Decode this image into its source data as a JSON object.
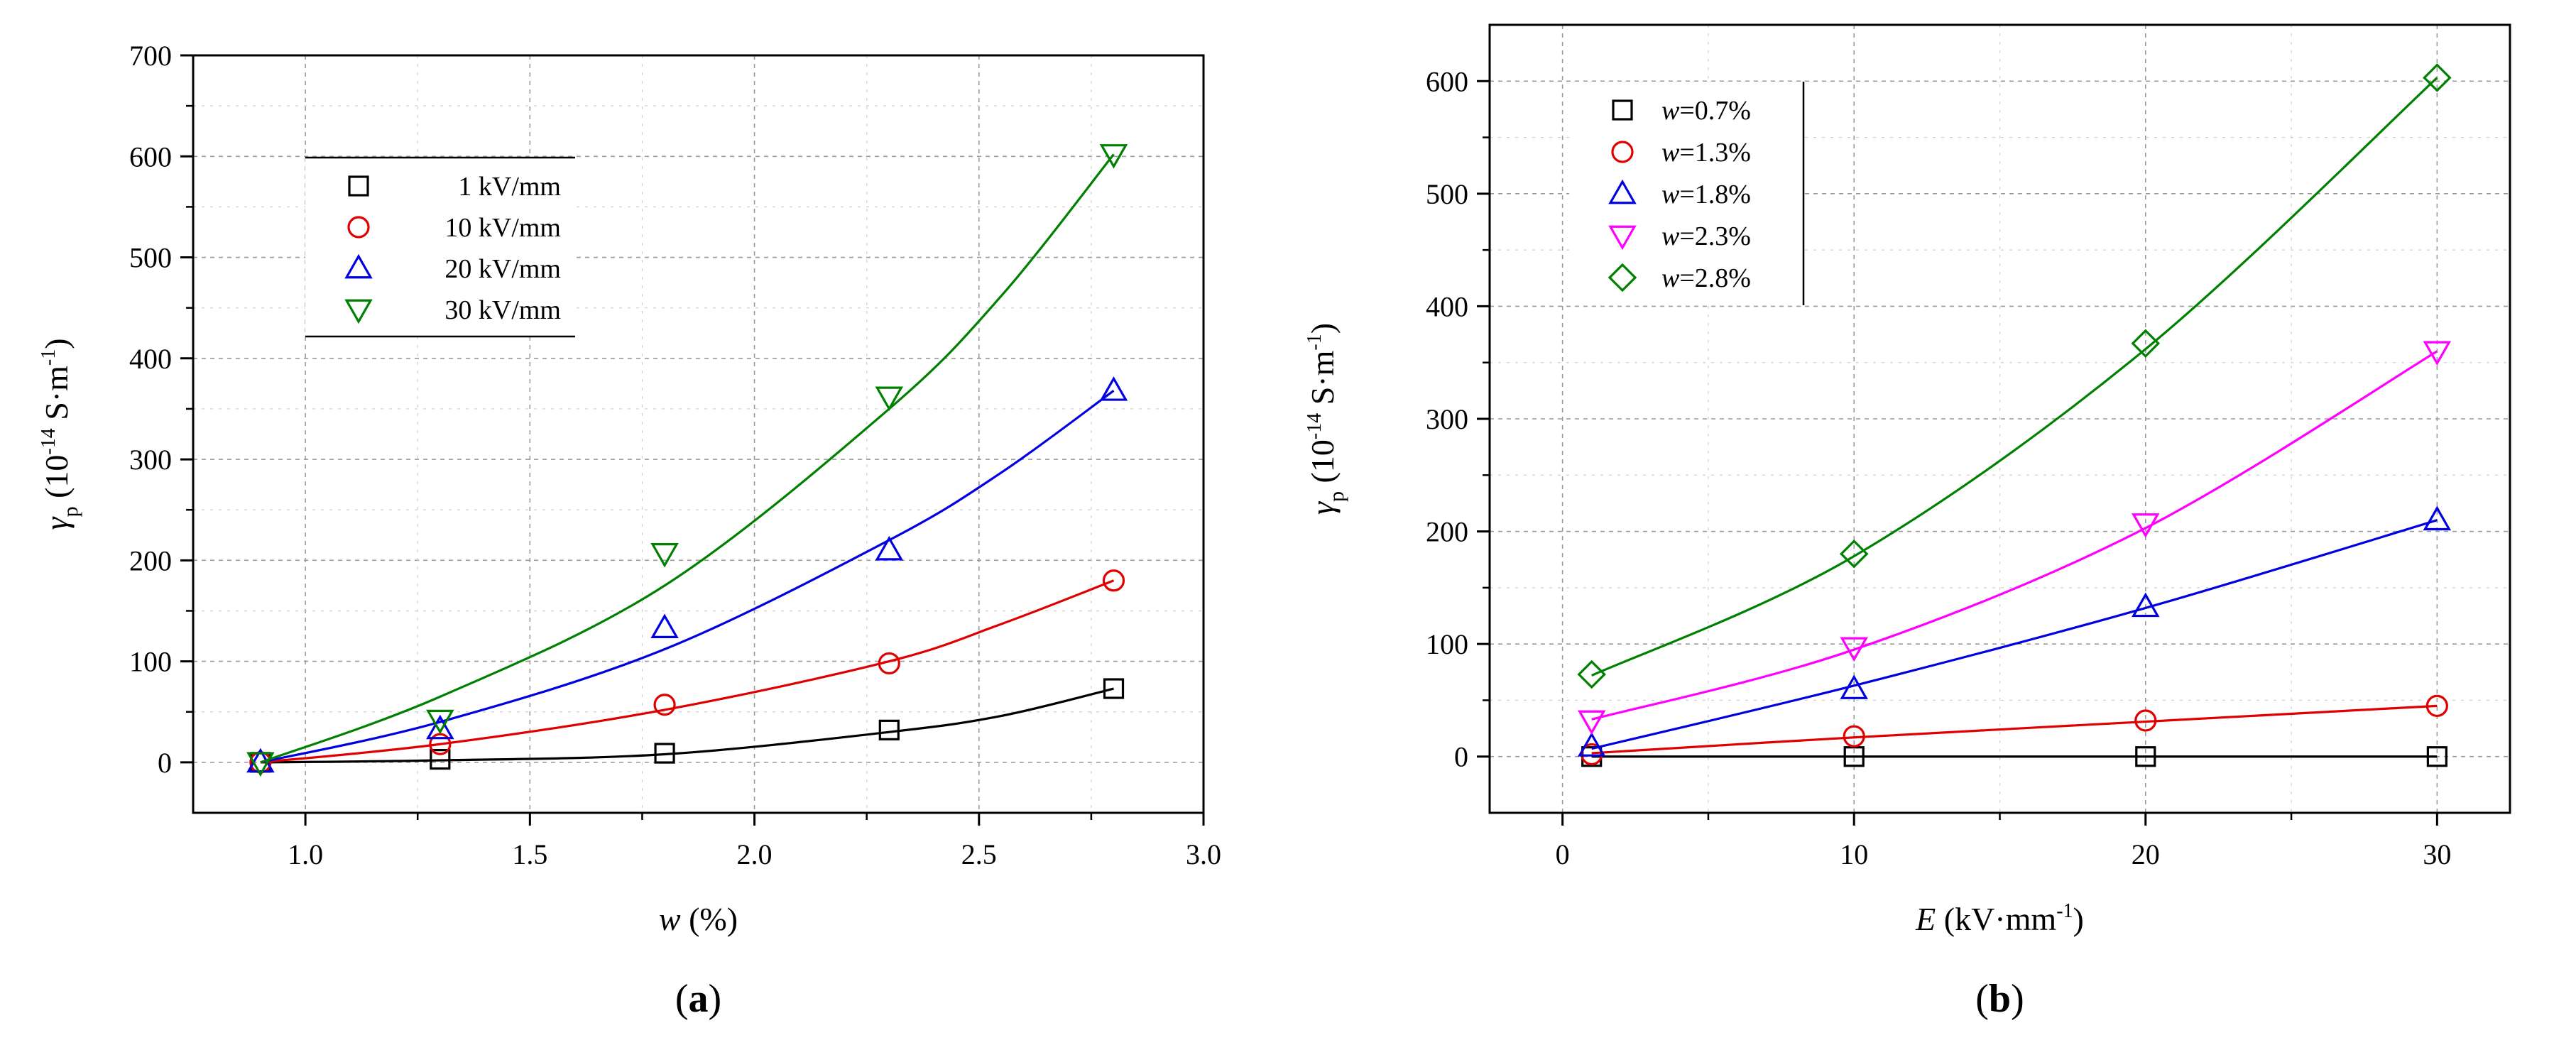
{
  "chart_data": [
    {
      "type": "scatter",
      "panel_label": {
        "pre": "(",
        "bold": "a",
        "post": ")"
      },
      "xlabel": {
        "var": "w",
        "unit": " (%)"
      },
      "ylabel": {
        "var": "γ",
        "sub": "p",
        "unit_pre": "(10",
        "sup": "-14",
        "unit_mid": " S·m",
        "sup2": "-1",
        "unit_post": ")"
      },
      "xlim": [
        0.75,
        3.0
      ],
      "ylim": [
        -50,
        700
      ],
      "xticks": [
        1.0,
        1.5,
        2.0,
        2.5,
        3.0
      ],
      "xtick_labels": [
        "1.0",
        "1.5",
        "2.0",
        "2.5",
        "3.0"
      ],
      "yticks": [
        0,
        100,
        200,
        300,
        400,
        500,
        600,
        700
      ],
      "ytick_labels": [
        "0",
        "100",
        "200",
        "300",
        "400",
        "500",
        "600",
        "700"
      ],
      "grid": true,
      "legend_position": "top-left",
      "legend_border": "tb",
      "series": [
        {
          "name": "1 kV/mm",
          "color": "#000000",
          "marker": "square",
          "x": [
            0.9,
            1.3,
            1.8,
            2.3,
            2.8
          ],
          "y": [
            0,
            3,
            9,
            32,
            73
          ],
          "fit": [
            [
              0.9,
              0
            ],
            [
              1.3,
              2
            ],
            [
              1.8,
              8
            ],
            [
              2.3,
              30
            ],
            [
              2.55,
              46
            ],
            [
              2.8,
              73
            ]
          ]
        },
        {
          "name": "10 kV/mm",
          "color": "#e00000",
          "marker": "circle",
          "x": [
            0.9,
            1.3,
            1.8,
            2.3,
            2.8
          ],
          "y": [
            0,
            18,
            57,
            98,
            180
          ],
          "fit": [
            [
              0.9,
              0
            ],
            [
              1.3,
              18
            ],
            [
              1.8,
              52
            ],
            [
              2.3,
              100
            ],
            [
              2.55,
              137
            ],
            [
              2.8,
              180
            ]
          ]
        },
        {
          "name": "20 kV/mm",
          "color": "#0000e0",
          "marker": "triangle-up",
          "x": [
            0.9,
            1.3,
            1.8,
            2.3,
            2.8
          ],
          "y": [
            0,
            33,
            133,
            210,
            368
          ],
          "fit": [
            [
              0.9,
              0
            ],
            [
              1.3,
              40
            ],
            [
              1.8,
              112
            ],
            [
              2.3,
              220
            ],
            [
              2.55,
              287
            ],
            [
              2.8,
              368
            ]
          ]
        },
        {
          "name": "30 kV/mm",
          "color": "#008000",
          "marker": "triangle-down",
          "x": [
            0.9,
            1.3,
            1.8,
            2.3,
            2.8
          ],
          "y": [
            0,
            42,
            207,
            362,
            602
          ],
          "fit": [
            [
              0.9,
              0
            ],
            [
              1.3,
              65
            ],
            [
              1.8,
              175
            ],
            [
              2.3,
              350
            ],
            [
              2.55,
              462
            ],
            [
              2.8,
              602
            ]
          ]
        }
      ]
    },
    {
      "type": "scatter",
      "panel_label": {
        "pre": "(",
        "bold": "b",
        "post": ")"
      },
      "xlabel": {
        "var": "E",
        "unit": "  (kV·mm",
        "sup": "-1",
        "unit_post": ")"
      },
      "ylabel": {
        "var": "γ",
        "sub": "p",
        "unit_pre": "(10",
        "sup": "-14",
        "unit_mid": " S·m",
        "sup2": "-1",
        "unit_post": ")"
      },
      "xlim": [
        -2.5,
        32.5
      ],
      "ylim": [
        -50,
        650
      ],
      "xticks": [
        0,
        10,
        20,
        30
      ],
      "xtick_labels": [
        "0",
        "10",
        "20",
        "30"
      ],
      "yticks": [
        0,
        100,
        200,
        300,
        400,
        500,
        600
      ],
      "ytick_labels": [
        "0",
        "100",
        "200",
        "300",
        "400",
        "500",
        "600"
      ],
      "grid": true,
      "legend_position": "top-left",
      "legend_border": "right",
      "series": [
        {
          "name": "=0.7%",
          "legend_var": "w",
          "color": "#000000",
          "marker": "square",
          "x": [
            1,
            10,
            20,
            30
          ],
          "y": [
            0,
            0,
            0,
            0
          ],
          "fit": [
            [
              1,
              0
            ],
            [
              30,
              0
            ]
          ]
        },
        {
          "name": "=1.3%",
          "legend_var": "w",
          "color": "#e00000",
          "marker": "circle",
          "x": [
            1,
            10,
            20,
            30
          ],
          "y": [
            2,
            18,
            32,
            45
          ],
          "fit": [
            [
              1,
              3
            ],
            [
              10,
              17
            ],
            [
              20,
              31
            ],
            [
              30,
              45
            ]
          ]
        },
        {
          "name": "=1.8%",
          "legend_var": "w",
          "color": "#0000e0",
          "marker": "triangle-up",
          "x": [
            1,
            10,
            20,
            30
          ],
          "y": [
            9,
            60,
            133,
            210
          ],
          "fit": [
            [
              1,
              7
            ],
            [
              10,
              63
            ],
            [
              20,
              132
            ],
            [
              30,
              210
            ]
          ]
        },
        {
          "name": "=2.3%",
          "legend_var": "w",
          "color": "#ff00ff",
          "marker": "triangle-down",
          "x": [
            1,
            10,
            20,
            30
          ],
          "y": [
            32,
            97,
            207,
            360
          ],
          "fit": [
            [
              1,
              33
            ],
            [
              10,
              95
            ],
            [
              20,
              203
            ],
            [
              30,
              360
            ]
          ]
        },
        {
          "name": "=2.8%",
          "legend_var": "w",
          "color": "#008000",
          "marker": "diamond",
          "x": [
            1,
            10,
            20,
            30
          ],
          "y": [
            73,
            180,
            367,
            603
          ],
          "fit": [
            [
              1,
              72
            ],
            [
              10,
              178
            ],
            [
              20,
              362
            ],
            [
              30,
              603
            ]
          ]
        }
      ]
    }
  ]
}
